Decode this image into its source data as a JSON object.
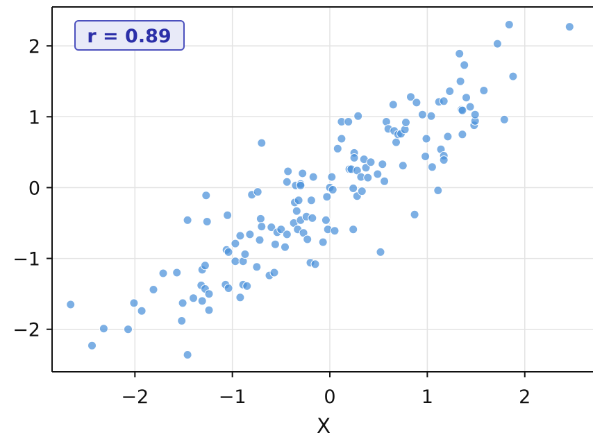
{
  "chart_data": {
    "type": "scatter",
    "xlabel": "X",
    "ylabel": "",
    "xlim": [
      -2.85,
      2.7
    ],
    "ylim": [
      -2.6,
      2.55
    ],
    "xticks": [
      -2,
      -1,
      0,
      1,
      2
    ],
    "yticks": [
      -2,
      -1,
      0,
      1,
      2
    ],
    "tick_labels_x": [
      "−2",
      "−1",
      "0",
      "1",
      "2"
    ],
    "tick_labels_y": [
      "−2",
      "−1",
      "0",
      "1",
      "2"
    ],
    "grid": true,
    "annotation": "r = 0.89",
    "colors": {
      "point": "#4a90d9",
      "annotation_text": "#2b2fa8",
      "annotation_fill": "#e8eaf8",
      "annotation_border": "#4b50bd",
      "grid": "#e3e3e3"
    },
    "series": [
      {
        "points": [
          [
            -2.66,
            -1.65
          ],
          [
            -2.44,
            -2.23
          ],
          [
            -2.32,
            -1.99
          ],
          [
            -2.07,
            -2.0
          ],
          [
            -2.01,
            -1.63
          ],
          [
            -1.93,
            -1.74
          ],
          [
            -1.81,
            -1.44
          ],
          [
            -1.71,
            -1.21
          ],
          [
            -1.57,
            -1.2
          ],
          [
            -1.52,
            -1.88
          ],
          [
            -1.51,
            -1.63
          ],
          [
            -1.46,
            -0.46
          ],
          [
            -1.46,
            -2.36
          ],
          [
            -1.4,
            -1.56
          ],
          [
            -1.32,
            -1.38
          ],
          [
            -1.31,
            -1.16
          ],
          [
            -1.31,
            -1.6
          ],
          [
            -1.28,
            -1.1
          ],
          [
            -1.28,
            -1.43
          ],
          [
            -1.27,
            -0.11
          ],
          [
            -1.26,
            -0.48
          ],
          [
            -1.24,
            -1.5
          ],
          [
            -1.24,
            -1.73
          ],
          [
            -1.07,
            -1.37
          ],
          [
            -1.06,
            -0.88
          ],
          [
            -1.05,
            -0.39
          ],
          [
            -1.04,
            -1.42
          ],
          [
            -1.04,
            -0.91
          ],
          [
            -0.97,
            -1.04
          ],
          [
            -0.97,
            -0.79
          ],
          [
            -0.92,
            -1.55
          ],
          [
            -0.92,
            -0.68
          ],
          [
            -0.89,
            -1.37
          ],
          [
            -0.89,
            -1.04
          ],
          [
            -0.87,
            -0.94
          ],
          [
            -0.85,
            -1.39
          ],
          [
            -0.82,
            -0.66
          ],
          [
            -0.8,
            -0.1
          ],
          [
            -0.75,
            -1.12
          ],
          [
            -0.74,
            -0.06
          ],
          [
            -0.72,
            -0.74
          ],
          [
            -0.71,
            -0.44
          ],
          [
            -0.7,
            0.63
          ],
          [
            -0.7,
            -0.55
          ],
          [
            -0.62,
            -1.24
          ],
          [
            -0.6,
            -0.56
          ],
          [
            -0.57,
            -1.2
          ],
          [
            -0.56,
            -0.8
          ],
          [
            -0.54,
            -0.63
          ],
          [
            -0.5,
            -0.59
          ],
          [
            -0.46,
            -0.84
          ],
          [
            -0.44,
            -0.66
          ],
          [
            -0.44,
            0.08
          ],
          [
            -0.43,
            0.23
          ],
          [
            -0.37,
            -0.5
          ],
          [
            -0.36,
            -0.21
          ],
          [
            -0.35,
            0.03
          ],
          [
            -0.34,
            -0.33
          ],
          [
            -0.33,
            -0.59
          ],
          [
            -0.32,
            -0.18
          ],
          [
            -0.3,
            0.05
          ],
          [
            -0.3,
            0.03
          ],
          [
            -0.3,
            -0.46
          ],
          [
            -0.28,
            0.2
          ],
          [
            -0.27,
            -0.64
          ],
          [
            -0.24,
            -0.41
          ],
          [
            -0.23,
            -0.73
          ],
          [
            -0.2,
            -1.06
          ],
          [
            -0.19,
            -0.18
          ],
          [
            -0.18,
            -0.43
          ],
          [
            -0.17,
            0.15
          ],
          [
            -0.15,
            -1.08
          ],
          [
            -0.07,
            -0.77
          ],
          [
            -0.04,
            -0.46
          ],
          [
            -0.03,
            -0.13
          ],
          [
            -0.02,
            -0.59
          ],
          [
            0.0,
            0.0
          ],
          [
            0.02,
            0.15
          ],
          [
            0.03,
            -0.03
          ],
          [
            0.05,
            -0.61
          ],
          [
            0.08,
            0.55
          ],
          [
            0.12,
            0.69
          ],
          [
            0.12,
            0.93
          ],
          [
            0.19,
            0.93
          ],
          [
            0.2,
            0.26
          ],
          [
            0.22,
            0.26
          ],
          [
            0.24,
            -0.59
          ],
          [
            0.24,
            -0.01
          ],
          [
            0.25,
            0.49
          ],
          [
            0.25,
            0.42
          ],
          [
            0.28,
            0.24
          ],
          [
            0.28,
            -0.12
          ],
          [
            0.29,
            1.01
          ],
          [
            0.32,
            0.15
          ],
          [
            0.33,
            -0.05
          ],
          [
            0.35,
            0.4
          ],
          [
            0.37,
            0.28
          ],
          [
            0.39,
            0.14
          ],
          [
            0.42,
            0.36
          ],
          [
            0.49,
            0.19
          ],
          [
            0.52,
            -0.91
          ],
          [
            0.54,
            0.33
          ],
          [
            0.56,
            0.09
          ],
          [
            0.58,
            0.93
          ],
          [
            0.6,
            0.83
          ],
          [
            0.65,
            1.17
          ],
          [
            0.66,
            0.8
          ],
          [
            0.68,
            0.64
          ],
          [
            0.7,
            0.75
          ],
          [
            0.73,
            0.76
          ],
          [
            0.75,
            0.31
          ],
          [
            0.77,
            0.82
          ],
          [
            0.78,
            0.92
          ],
          [
            0.83,
            1.28
          ],
          [
            0.87,
            -0.38
          ],
          [
            0.89,
            1.2
          ],
          [
            0.95,
            1.03
          ],
          [
            0.98,
            0.44
          ],
          [
            0.99,
            0.69
          ],
          [
            1.04,
            1.01
          ],
          [
            1.05,
            0.29
          ],
          [
            1.11,
            -0.04
          ],
          [
            1.12,
            1.21
          ],
          [
            1.14,
            0.54
          ],
          [
            1.17,
            1.22
          ],
          [
            1.17,
            0.45
          ],
          [
            1.17,
            0.39
          ],
          [
            1.21,
            0.72
          ],
          [
            1.23,
            1.36
          ],
          [
            1.33,
            1.89
          ],
          [
            1.34,
            1.5
          ],
          [
            1.35,
            1.1
          ],
          [
            1.36,
            1.09
          ],
          [
            1.36,
            0.75
          ],
          [
            1.38,
            1.73
          ],
          [
            1.4,
            1.27
          ],
          [
            1.44,
            1.14
          ],
          [
            1.48,
            0.88
          ],
          [
            1.49,
            0.94
          ],
          [
            1.49,
            1.03
          ],
          [
            1.58,
            1.37
          ],
          [
            1.72,
            2.03
          ],
          [
            1.79,
            0.96
          ],
          [
            1.84,
            2.3
          ],
          [
            1.88,
            1.57
          ],
          [
            2.46,
            2.27
          ]
        ]
      }
    ]
  }
}
